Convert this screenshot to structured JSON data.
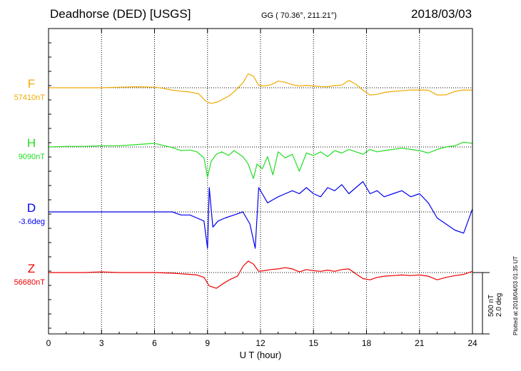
{
  "header": {
    "station": "Deadhorse (DED)  [USGS]",
    "coords": "GG ( 70.36°, 211.21°)",
    "date": "2018/03/03"
  },
  "footer": {
    "plotted": "Plotted at 2018/04/03 01:35 UT",
    "scale_nt": "500 nT",
    "scale_deg": "2.0 deg"
  },
  "chart_data": {
    "type": "line",
    "title": "Deadhorse (DED)  [USGS]",
    "xlabel": "U T (hour)",
    "xlim": [
      0,
      24
    ],
    "xticks": [
      0,
      3,
      6,
      9,
      12,
      15,
      18,
      21,
      24
    ],
    "grid": true,
    "scale_bar": {
      "nT": 500,
      "deg": 2.0
    },
    "series": [
      {
        "name": "F",
        "baseline_label": "57410nT",
        "color": "#f0aa00",
        "x": [
          0,
          1,
          2,
          3,
          4,
          5,
          6,
          6.5,
          7,
          7.5,
          8,
          8.5,
          8.9,
          9.2,
          9.6,
          10,
          10.3,
          10.6,
          11,
          11.3,
          11.6,
          11.9,
          12.2,
          12.6,
          13,
          13.4,
          13.8,
          14.2,
          14.6,
          15,
          15.4,
          15.8,
          16.2,
          16.6,
          17,
          17.4,
          17.8,
          18.2,
          18.6,
          19,
          19.5,
          20,
          20.5,
          21,
          21.5,
          22,
          22.5,
          23,
          23.5,
          24
        ],
        "y": [
          0,
          0,
          0,
          0,
          5,
          8,
          5,
          -5,
          -20,
          -28,
          -35,
          -50,
          -110,
          -130,
          -115,
          -85,
          -60,
          -20,
          40,
          115,
          95,
          20,
          15,
          25,
          55,
          45,
          25,
          15,
          20,
          15,
          10,
          8,
          18,
          22,
          60,
          30,
          -20,
          -60,
          -55,
          -38,
          -30,
          -25,
          -18,
          -18,
          -20,
          -60,
          -58,
          -30,
          -18,
          -20
        ]
      },
      {
        "name": "H",
        "baseline_label": "9090nT",
        "color": "#22dd22",
        "x": [
          0,
          1,
          2,
          3,
          4,
          5,
          6,
          7,
          7.5,
          8,
          8.4,
          8.8,
          9,
          9.2,
          9.5,
          9.8,
          10.2,
          10.5,
          11,
          11.3,
          11.6,
          11.8,
          12.1,
          12.4,
          12.7,
          13,
          13.4,
          13.8,
          14.2,
          14.6,
          15,
          15.4,
          15.8,
          16.2,
          16.6,
          17,
          17.4,
          17.8,
          18.2,
          18.6,
          19,
          19.5,
          20,
          20.5,
          21,
          21.5,
          22,
          22.5,
          23,
          23.5,
          24
        ],
        "y": [
          0,
          5,
          5,
          10,
          10,
          20,
          30,
          -5,
          -30,
          -25,
          -40,
          -90,
          -250,
          -120,
          -60,
          -40,
          -70,
          -30,
          -80,
          -140,
          -260,
          -140,
          -180,
          -80,
          -230,
          -40,
          -90,
          -60,
          -200,
          -50,
          -70,
          -40,
          -80,
          -30,
          -50,
          -20,
          -40,
          -60,
          -20,
          -40,
          -30,
          -20,
          -10,
          -20,
          -30,
          -50,
          -20,
          0,
          10,
          40,
          30
        ]
      },
      {
        "name": "D",
        "baseline_label": "-3.6deg",
        "color": "#0000ee",
        "x": [
          0,
          1,
          2,
          3,
          4,
          5,
          6,
          7,
          7.5,
          8,
          8.4,
          8.8,
          9,
          9.1,
          9.3,
          9.6,
          10,
          10.5,
          11,
          11.4,
          11.7,
          11.9,
          12.1,
          12.4,
          12.7,
          13,
          13.4,
          13.8,
          14.2,
          14.6,
          15,
          15.4,
          15.8,
          16.2,
          16.6,
          17,
          17.4,
          17.8,
          18.2,
          18.6,
          19,
          19.5,
          20,
          20.5,
          21,
          21.5,
          22,
          22.5,
          23,
          23.5,
          24
        ],
        "y": [
          0,
          0,
          0,
          0,
          0,
          0,
          0,
          0,
          -0.1,
          -0.1,
          -0.2,
          -0.3,
          -1.2,
          0.8,
          -0.5,
          -0.3,
          -0.2,
          -0.1,
          0,
          -0.4,
          -1.2,
          0.8,
          0.6,
          0.3,
          0.4,
          0.5,
          0.6,
          0.7,
          0.6,
          0.8,
          0.6,
          0.5,
          0.8,
          0.7,
          0.9,
          0.6,
          0.8,
          1.0,
          0.6,
          0.7,
          0.5,
          0.6,
          0.7,
          0.5,
          0.6,
          0.3,
          -0.2,
          -0.4,
          -0.6,
          -0.7,
          0.1
        ]
      },
      {
        "name": "Z",
        "baseline_label": "56680nT",
        "color": "#ee0000",
        "x": [
          0,
          1,
          2,
          3,
          4,
          5,
          6,
          7,
          7.5,
          8,
          8.4,
          8.8,
          9.1,
          9.5,
          9.9,
          10.3,
          10.7,
          11,
          11.3,
          11.6,
          11.9,
          12.2,
          12.6,
          13,
          13.4,
          13.8,
          14.2,
          14.6,
          15,
          15.4,
          15.8,
          16.2,
          16.6,
          17,
          17.4,
          17.8,
          18.2,
          18.6,
          19,
          19.5,
          20,
          20.5,
          21,
          21.5,
          22,
          22.5,
          23,
          23.5,
          24
        ],
        "y": [
          0,
          0,
          0,
          5,
          0,
          0,
          0,
          -5,
          -10,
          -15,
          -20,
          -40,
          -110,
          -130,
          -90,
          -55,
          -30,
          50,
          95,
          70,
          10,
          15,
          25,
          30,
          40,
          30,
          5,
          25,
          15,
          10,
          20,
          10,
          25,
          30,
          -10,
          -50,
          -60,
          -40,
          -30,
          -25,
          -20,
          -25,
          -20,
          -30,
          -60,
          -40,
          -25,
          -15,
          10
        ]
      }
    ]
  }
}
